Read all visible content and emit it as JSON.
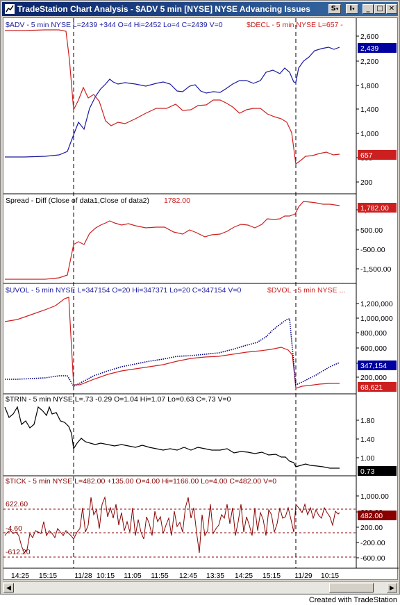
{
  "window": {
    "title": "TradeStation Chart Analysis - $ADV  5 min  [NYSE] NYSE Advancing Issues",
    "buttons": {
      "style": "S",
      "symbol": "I",
      "minimize": "_",
      "maximize": "□",
      "close": "✕"
    }
  },
  "colors": {
    "blue": "#1a1aa0",
    "red": "#cc2020",
    "black": "#000000",
    "darkred": "#880000",
    "navy": "#000080"
  },
  "panels": {
    "adv": {
      "header_blue": "$ADV - 5 min   NYSE  L=2439  +344  O=4  Hi=2452  Lo=4  C=2439  V=0",
      "header_red": "$DECL - 5 min   NYSE  L=657  -",
      "ticks": [
        "2,600",
        "2,200",
        "1,800",
        "1,400",
        "1,000",
        "600",
        "200"
      ],
      "badge_blue": "2,439",
      "badge_red": "657"
    },
    "spread": {
      "header_black": "Spread - Diff  (Close of data1,Close of data2)",
      "header_red": "1782.00",
      "ticks": [
        "1,500.00",
        "500.00",
        "-500.00",
        "-1,500.00"
      ],
      "badge": "1,782.00"
    },
    "uvol": {
      "header_blue": "$UVOL - 5 min   NYSE  L=347154   O=20  Hi=347371  Lo=20  C=347154  V=0",
      "header_red": "$DVOL - 5 min   NYSE   ...",
      "ticks": [
        "1,200,000",
        "1,000,000",
        "800,000",
        "600,000",
        "400,000",
        "200,000"
      ],
      "badge_blue": "347,154",
      "badge_red": "68,621"
    },
    "trin": {
      "header_black": "$TRIN - 5 min   NYSE  L=.73  -0.29  O=1.04  Hi=1.07  Lo=0.63  C=.73  V=0",
      "ticks": [
        "1.80",
        "1.40",
        "1.00"
      ],
      "badge": "0.73"
    },
    "tick": {
      "header_darkred": "$TICK - 5 min   NYSE  L=482.00  +135.00  O=4.00  Hi=1166.00  Lo=4.00  C=482.00  V=0",
      "ticks": [
        "1,000.00",
        "600.00",
        "200.00",
        "-200.00",
        "-600.00"
      ],
      "left_labels": [
        "622.60",
        "-4.60",
        "-612.20"
      ],
      "badge": "482.00"
    }
  },
  "time_axis": [
    "14:25",
    "15:15",
    "11/28",
    "10:15",
    "11:05",
    "11:55",
    "12:45",
    "13:35",
    "14:25",
    "15:15",
    "11/29",
    "10:15"
  ],
  "footer": "Created with TradeStation"
}
